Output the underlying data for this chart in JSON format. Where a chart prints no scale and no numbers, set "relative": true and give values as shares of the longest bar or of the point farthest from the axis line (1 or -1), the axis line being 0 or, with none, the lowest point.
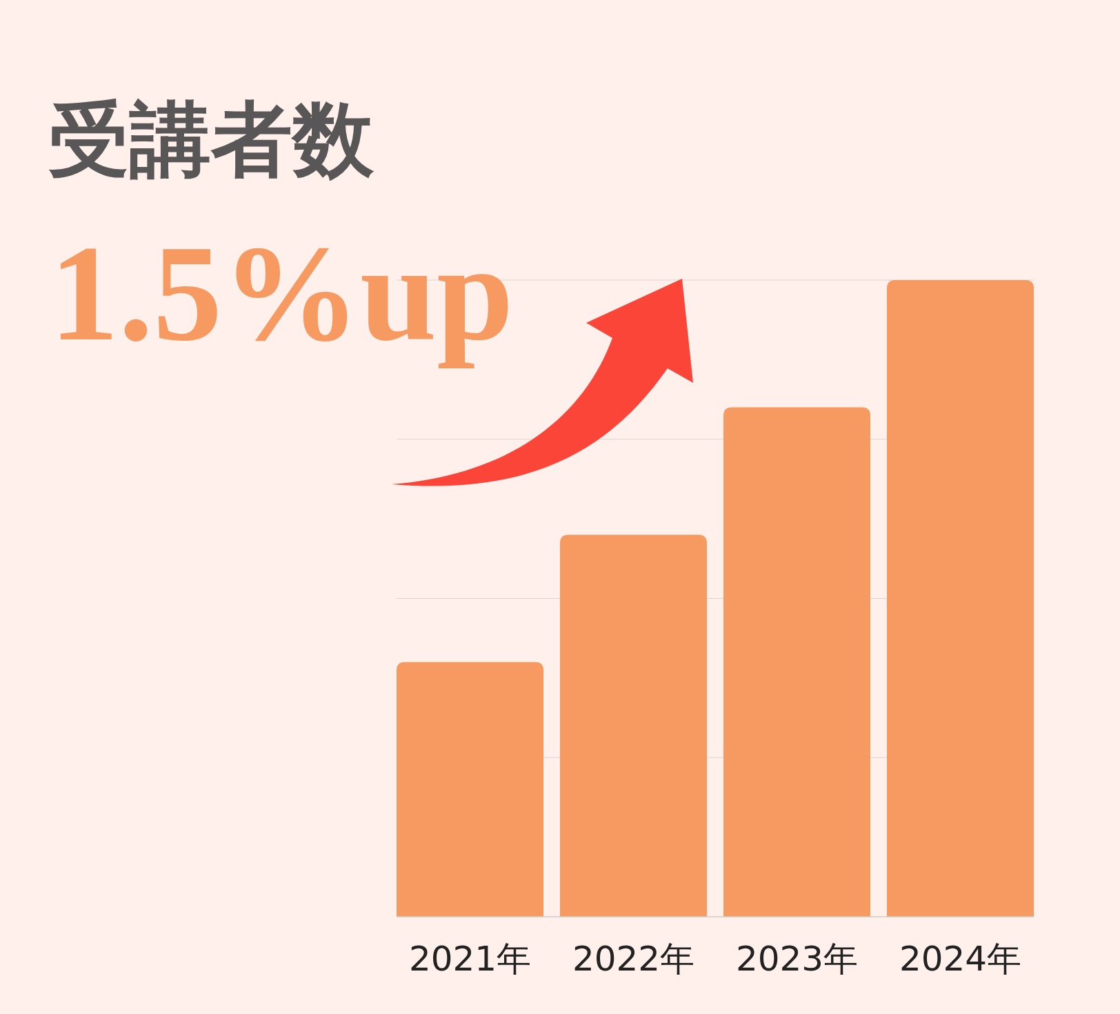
{
  "chart_data": {
    "type": "bar",
    "title": "受講者数",
    "annotations": [
      "1.5%up"
    ],
    "categories": [
      "2021年",
      "2022年",
      "2023年",
      "2024年"
    ],
    "values": [
      0.4,
      0.6,
      0.8,
      1.0
    ],
    "color": "#f79a61",
    "relative": true,
    "grid": "y"
  }
}
